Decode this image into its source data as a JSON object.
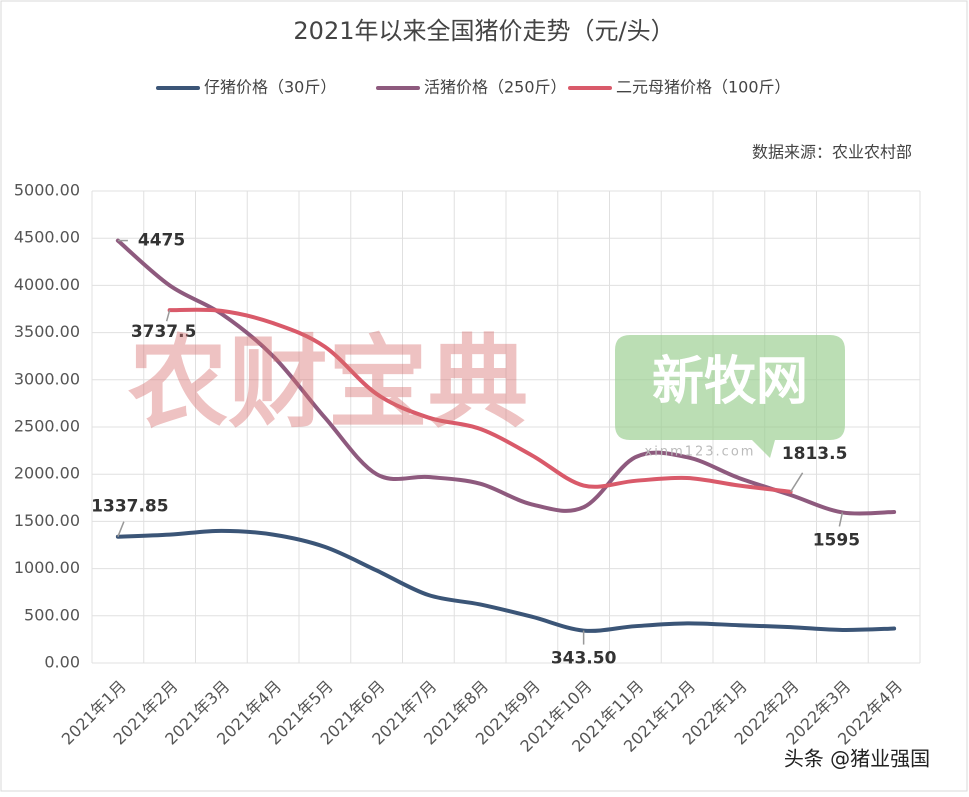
{
  "chart_data": {
    "type": "line",
    "title": "2021年以来全国猪价走势（元/头）",
    "source": "数据来源：农业农村部",
    "watermarks": [
      "农财宝典",
      "新牧网",
      "xinm123.com",
      "头条 @猪业强国"
    ],
    "categories": [
      "2021年1月",
      "2021年2月",
      "2021年3月",
      "2021年4月",
      "2021年5月",
      "2021年6月",
      "2021年7月",
      "2021年8月",
      "2021年9月",
      "2021年10月",
      "2021年11月",
      "2021年12月",
      "2022年1月",
      "2022年2月",
      "2022年3月",
      "2022年4月"
    ],
    "series": [
      {
        "name": "仔猪价格（30斤）",
        "color": "#3b5577",
        "values": [
          1337.85,
          1360,
          1400,
          1360,
          1230,
          980,
          720,
          620,
          490,
          343.5,
          390,
          420,
          400,
          380,
          350,
          365
        ],
        "value_labels": [
          "1337.85",
          null,
          null,
          null,
          null,
          null,
          null,
          null,
          null,
          "343.50",
          null,
          null,
          null,
          null,
          null,
          null
        ]
      },
      {
        "name": "活猪价格（250斤）",
        "color": "#8e5a7e",
        "values": [
          4475,
          4000,
          3700,
          3250,
          2600,
          2000,
          1970,
          1900,
          1680,
          1650,
          2180,
          2180,
          1960,
          1780,
          1595,
          1600
        ],
        "value_labels": [
          "4475",
          null,
          null,
          null,
          null,
          null,
          null,
          null,
          null,
          null,
          null,
          null,
          null,
          null,
          "1595",
          null
        ]
      },
      {
        "name": "二元母猪价格（100斤）",
        "color": "#d95a6a",
        "values": [
          null,
          3737.5,
          3730,
          3600,
          3350,
          2850,
          2600,
          2480,
          2200,
          1880,
          1930,
          1960,
          1880,
          1813.5,
          null,
          null
        ],
        "value_labels": [
          null,
          "3737.5",
          null,
          null,
          null,
          null,
          null,
          null,
          null,
          null,
          null,
          null,
          null,
          "1813.5",
          null,
          null
        ]
      }
    ],
    "ylim": [
      0,
      5000
    ],
    "yticks": [
      {
        "value": 0,
        "label": "0.00"
      },
      {
        "value": 500,
        "label": "500.00"
      },
      {
        "value": 1000,
        "label": "1000.00"
      },
      {
        "value": 1500,
        "label": "1500.00"
      },
      {
        "value": 2000,
        "label": "2000.00"
      },
      {
        "value": 2500,
        "label": "2500.00"
      },
      {
        "value": 3000,
        "label": "3000.00"
      },
      {
        "value": 3500,
        "label": "3500.00"
      },
      {
        "value": 4000,
        "label": "4000.00"
      },
      {
        "value": 4500,
        "label": "4500.00"
      },
      {
        "value": 5000,
        "label": "5000.00"
      }
    ],
    "grid": true,
    "smooth": true,
    "legend": "top"
  }
}
